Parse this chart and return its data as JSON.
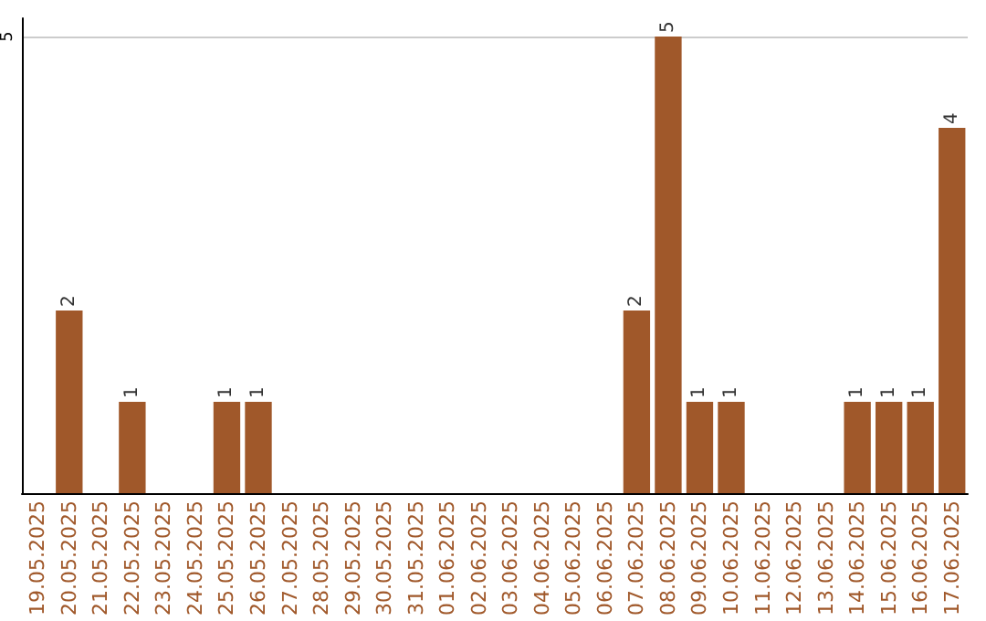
{
  "chart_data": {
    "type": "bar",
    "categories": [
      "19.05.2025",
      "20.05.2025",
      "21.05.2025",
      "22.05.2025",
      "23.05.2025",
      "24.05.2025",
      "25.05.2025",
      "26.05.2025",
      "27.05.2025",
      "28.05.2025",
      "29.05.2025",
      "30.05.2025",
      "31.05.2025",
      "01.06.2025",
      "02.06.2025",
      "03.06.2025",
      "04.06.2025",
      "05.06.2025",
      "06.06.2025",
      "07.06.2025",
      "08.06.2025",
      "09.06.2025",
      "10.06.2025",
      "11.06.2025",
      "12.06.2025",
      "13.06.2025",
      "14.06.2025",
      "15.06.2025",
      "16.06.2025",
      "17.06.2025"
    ],
    "values": [
      0,
      2,
      0,
      1,
      0,
      0,
      1,
      1,
      0,
      0,
      0,
      0,
      0,
      0,
      0,
      0,
      0,
      0,
      0,
      2,
      5,
      1,
      1,
      0,
      0,
      0,
      1,
      1,
      1,
      4
    ],
    "value_labels": [
      null,
      "2",
      null,
      "1",
      null,
      null,
      "1",
      "1",
      null,
      null,
      null,
      null,
      null,
      null,
      null,
      null,
      null,
      null,
      null,
      "2",
      "5",
      "1",
      "1",
      null,
      null,
      null,
      "1",
      "1",
      "1",
      "4"
    ],
    "color": "#a0582a",
    "ylim": [
      0,
      5.2
    ],
    "yticks": [
      5
    ],
    "grid": "y"
  }
}
